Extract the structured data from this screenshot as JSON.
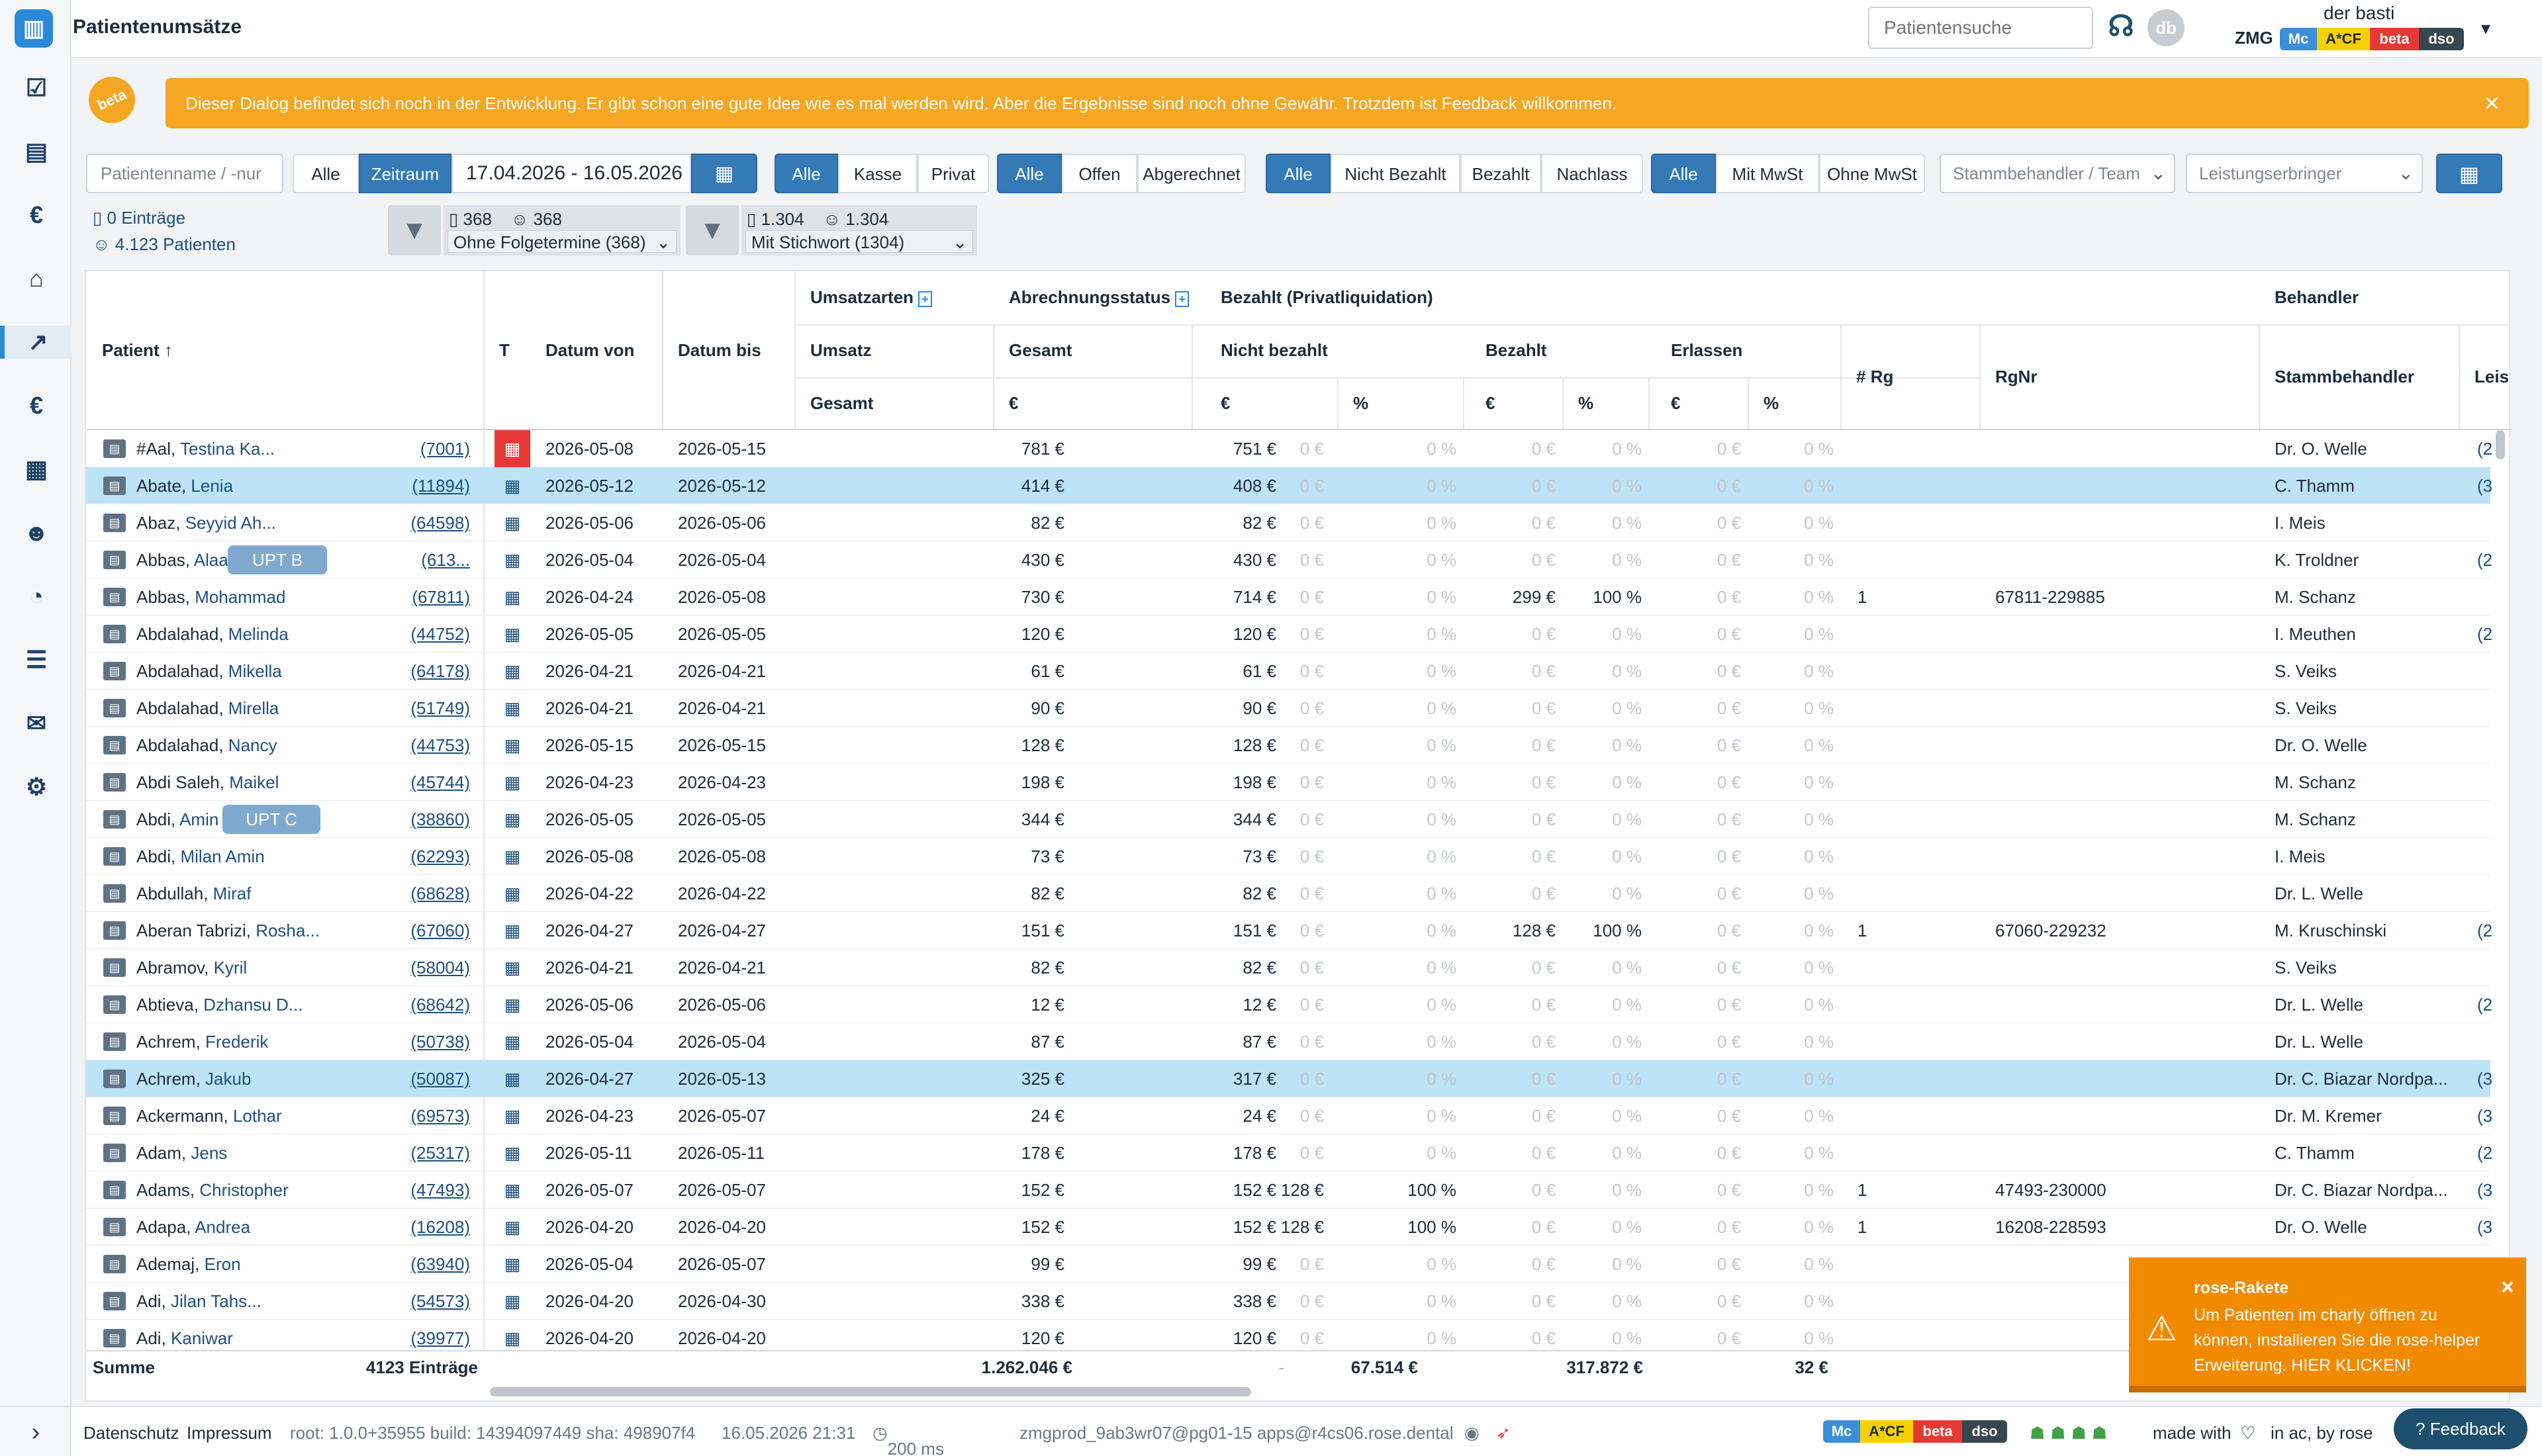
{
  "app": {
    "title": "Patientenumsätze",
    "search_placeholder": "Patientensuche",
    "avatar_initials": "db",
    "user": "der basti",
    "org": "ZMG",
    "badges": [
      "Mc",
      "A*CF",
      "beta",
      "dso"
    ]
  },
  "warning": {
    "badge": "beta",
    "text": "Dieser Dialog befindet sich noch in der Entwicklung. Er gibt schon eine gute Idee wie es mal werden wird. Aber die Ergebnisse sind noch ohne Gewähr. Trotzdem ist Feedback willkommen.",
    "close": "×"
  },
  "filters": {
    "name_placeholder": "Patientenname / -nur",
    "period_all": "Alle",
    "period_range": "Zeitraum",
    "date_range": "17.04.2026 - 16.05.2026",
    "insurance": [
      "Alle",
      "Kasse",
      "Privat"
    ],
    "billing": [
      "Alle",
      "Offen",
      "Abgerechnet"
    ],
    "payment": [
      "Alle",
      "Nicht Bezahlt",
      "Bezahlt",
      "Nachlass"
    ],
    "vat": [
      "Alle",
      "Mit MwSt",
      "Ohne MwSt"
    ],
    "team_placeholder": "Stammbehandler / Team",
    "provider_placeholder": "Leistungserbringer"
  },
  "stats": {
    "entries": "0 Einträge",
    "patients": "4.123 Patienten",
    "f1_a": "368",
    "f1_b": "368",
    "f1_select": "Ohne Folgetermine (368)",
    "f2_a": "1.304",
    "f2_b": "1.304",
    "f2_select": "Mit Stichwort (1304)"
  },
  "headers": {
    "patient": "Patient ↑",
    "t": "T",
    "date_from": "Datum von",
    "date_to": "Datum bis",
    "umsatzarten": "Umsatzarten",
    "abrechnungsstatus": "Abrechnungsstatus",
    "bezahlt_priv": "Bezahlt (Privatliquidation)",
    "behandler": "Behandler",
    "umsatz": "Umsatz",
    "gesamt": "Gesamt",
    "nicht_bezahlt": "Nicht bezahlt",
    "bezahlt": "Bezahlt",
    "erlassen": "Erlassen",
    "rg": "# Rg",
    "rgnr": "RgNr",
    "stammbehandler": "Stammbehandler",
    "leis": "Leis",
    "gesamt2": "Gesamt",
    "euro": "€",
    "pct": "%"
  },
  "rows": [
    {
      "last": "#Aal",
      "first": "Testina Ka...",
      "id": "(7001)",
      "from": "2026-05-08",
      "to": "2026-05-15",
      "umsatz": "781 €",
      "gesamt": "751 €",
      "nb_eur": "0 €",
      "nb_pct": "0 %",
      "b_eur": "0 €",
      "b_pct": "0 %",
      "e_eur": "0 €",
      "e_pct": "0 %",
      "rg": "",
      "rgnr": "",
      "beh": "Dr. O. Welle",
      "extra": "(2"
    },
    {
      "last": "Abate",
      "first": "Lenia",
      "id": "(11894)",
      "from": "2026-05-12",
      "to": "2026-05-12",
      "umsatz": "414 €",
      "gesamt": "408 €",
      "nb_eur": "0 €",
      "nb_pct": "0 %",
      "b_eur": "0 €",
      "b_pct": "0 %",
      "e_eur": "0 €",
      "e_pct": "0 %",
      "rg": "",
      "rgnr": "",
      "beh": "C. Thamm",
      "extra": "(3"
    },
    {
      "last": "Abaz",
      "first": "Seyyid Ah...",
      "id": "(64598)",
      "from": "2026-05-06",
      "to": "2026-05-06",
      "umsatz": "82 €",
      "gesamt": "82 €",
      "nb_eur": "0 €",
      "nb_pct": "0 %",
      "b_eur": "0 €",
      "b_pct": "0 %",
      "e_eur": "0 €",
      "e_pct": "0 %",
      "rg": "",
      "rgnr": "",
      "beh": "I. Meis",
      "extra": ""
    },
    {
      "last": "Abbas",
      "first": "Alaa",
      "id": "(613...",
      "from": "2026-05-04",
      "to": "2026-05-04",
      "umsatz": "430 €",
      "gesamt": "430 €",
      "nb_eur": "0 €",
      "nb_pct": "0 %",
      "b_eur": "0 €",
      "b_pct": "0 %",
      "e_eur": "0 €",
      "e_pct": "0 %",
      "rg": "",
      "rgnr": "",
      "beh": "K. Troldner",
      "extra": "(2"
    },
    {
      "last": "Abbas",
      "first": "Mohammad",
      "id": "(67811)",
      "from": "2026-04-24",
      "to": "2026-05-08",
      "umsatz": "730 €",
      "gesamt": "714 €",
      "nb_eur": "0 €",
      "nb_pct": "0 %",
      "b_eur": "299 €",
      "b_pct": "100 %",
      "e_eur": "0 €",
      "e_pct": "0 %",
      "rg": "1",
      "rgnr": "67811-229885",
      "beh": "M. Schanz",
      "extra": ""
    },
    {
      "last": "Abdalahad",
      "first": "Melinda",
      "id": "(44752)",
      "from": "2026-05-05",
      "to": "2026-05-05",
      "umsatz": "120 €",
      "gesamt": "120 €",
      "nb_eur": "0 €",
      "nb_pct": "0 %",
      "b_eur": "0 €",
      "b_pct": "0 %",
      "e_eur": "0 €",
      "e_pct": "0 %",
      "rg": "",
      "rgnr": "",
      "beh": "I. Meuthen",
      "extra": "(2"
    },
    {
      "last": "Abdalahad",
      "first": "Mikella",
      "id": "(64178)",
      "from": "2026-04-21",
      "to": "2026-04-21",
      "umsatz": "61 €",
      "gesamt": "61 €",
      "nb_eur": "0 €",
      "nb_pct": "0 %",
      "b_eur": "0 €",
      "b_pct": "0 %",
      "e_eur": "0 €",
      "e_pct": "0 %",
      "rg": "",
      "rgnr": "",
      "beh": "S. Veiks",
      "extra": ""
    },
    {
      "last": "Abdalahad",
      "first": "Mirella",
      "id": "(51749)",
      "from": "2026-04-21",
      "to": "2026-04-21",
      "umsatz": "90 €",
      "gesamt": "90 €",
      "nb_eur": "0 €",
      "nb_pct": "0 %",
      "b_eur": "0 €",
      "b_pct": "0 %",
      "e_eur": "0 €",
      "e_pct": "0 %",
      "rg": "",
      "rgnr": "",
      "beh": "S. Veiks",
      "extra": ""
    },
    {
      "last": "Abdalahad",
      "first": "Nancy",
      "id": "(44753)",
      "from": "2026-05-15",
      "to": "2026-05-15",
      "umsatz": "128 €",
      "gesamt": "128 €",
      "nb_eur": "0 €",
      "nb_pct": "0 %",
      "b_eur": "0 €",
      "b_pct": "0 %",
      "e_eur": "0 €",
      "e_pct": "0 %",
      "rg": "",
      "rgnr": "",
      "beh": "Dr. O. Welle",
      "extra": ""
    },
    {
      "last": "Abdi Saleh",
      "first": "Maikel",
      "id": "(45744)",
      "from": "2026-04-23",
      "to": "2026-04-23",
      "umsatz": "198 €",
      "gesamt": "198 €",
      "nb_eur": "0 €",
      "nb_pct": "0 %",
      "b_eur": "0 €",
      "b_pct": "0 %",
      "e_eur": "0 €",
      "e_pct": "0 %",
      "rg": "",
      "rgnr": "",
      "beh": "M. Schanz",
      "extra": ""
    },
    {
      "last": "Abdi",
      "first": "Amin",
      "id": "(38860)",
      "from": "2026-05-05",
      "to": "2026-05-05",
      "umsatz": "344 €",
      "gesamt": "344 €",
      "nb_eur": "0 €",
      "nb_pct": "0 %",
      "b_eur": "0 €",
      "b_pct": "0 %",
      "e_eur": "0 €",
      "e_pct": "0 %",
      "rg": "",
      "rgnr": "",
      "beh": "M. Schanz",
      "extra": ""
    },
    {
      "last": "Abdi",
      "first": "Milan Amin",
      "id": "(62293)",
      "from": "2026-05-08",
      "to": "2026-05-08",
      "umsatz": "73 €",
      "gesamt": "73 €",
      "nb_eur": "0 €",
      "nb_pct": "0 %",
      "b_eur": "0 €",
      "b_pct": "0 %",
      "e_eur": "0 €",
      "e_pct": "0 %",
      "rg": "",
      "rgnr": "",
      "beh": "I. Meis",
      "extra": ""
    },
    {
      "last": "Abdullah",
      "first": "Miraf",
      "id": "(68628)",
      "from": "2026-04-22",
      "to": "2026-04-22",
      "umsatz": "82 €",
      "gesamt": "82 €",
      "nb_eur": "0 €",
      "nb_pct": "0 %",
      "b_eur": "0 €",
      "b_pct": "0 %",
      "e_eur": "0 €",
      "e_pct": "0 %",
      "rg": "",
      "rgnr": "",
      "beh": "Dr. L. Welle",
      "extra": ""
    },
    {
      "last": "Aberan Tabrizi",
      "first": "Rosha...",
      "id": "(67060)",
      "from": "2026-04-27",
      "to": "2026-04-27",
      "umsatz": "151 €",
      "gesamt": "151 €",
      "nb_eur": "0 €",
      "nb_pct": "0 %",
      "b_eur": "128 €",
      "b_pct": "100 %",
      "e_eur": "0 €",
      "e_pct": "0 %",
      "rg": "1",
      "rgnr": "67060-229232",
      "beh": "M. Kruschinski",
      "extra": "(2"
    },
    {
      "last": "Abramov",
      "first": "Kyril",
      "id": "(58004)",
      "from": "2026-04-21",
      "to": "2026-04-21",
      "umsatz": "82 €",
      "gesamt": "82 €",
      "nb_eur": "0 €",
      "nb_pct": "0 %",
      "b_eur": "0 €",
      "b_pct": "0 %",
      "e_eur": "0 €",
      "e_pct": "0 %",
      "rg": "",
      "rgnr": "",
      "beh": "S. Veiks",
      "extra": ""
    },
    {
      "last": "Abtieva",
      "first": "Dzhansu D...",
      "id": "(68642)",
      "from": "2026-05-06",
      "to": "2026-05-06",
      "umsatz": "12 €",
      "gesamt": "12 €",
      "nb_eur": "0 €",
      "nb_pct": "0 %",
      "b_eur": "0 €",
      "b_pct": "0 %",
      "e_eur": "0 €",
      "e_pct": "0 %",
      "rg": "",
      "rgnr": "",
      "beh": "Dr. L. Welle",
      "extra": "(2"
    },
    {
      "last": "Achrem",
      "first": "Frederik",
      "id": "(50738)",
      "from": "2026-05-04",
      "to": "2026-05-04",
      "umsatz": "87 €",
      "gesamt": "87 €",
      "nb_eur": "0 €",
      "nb_pct": "0 %",
      "b_eur": "0 €",
      "b_pct": "0 %",
      "e_eur": "0 €",
      "e_pct": "0 %",
      "rg": "",
      "rgnr": "",
      "beh": "Dr. L. Welle",
      "extra": ""
    },
    {
      "last": "Achrem",
      "first": "Jakub",
      "id": "(50087)",
      "from": "2026-04-27",
      "to": "2026-05-13",
      "umsatz": "325 €",
      "gesamt": "317 €",
      "nb_eur": "0 €",
      "nb_pct": "0 %",
      "b_eur": "0 €",
      "b_pct": "0 %",
      "e_eur": "0 €",
      "e_pct": "0 %",
      "rg": "",
      "rgnr": "",
      "beh": "Dr. C. Biazar Nordpa...",
      "extra": "(3"
    },
    {
      "last": "Ackermann",
      "first": "Lothar",
      "id": "(69573)",
      "from": "2026-04-23",
      "to": "2026-05-07",
      "umsatz": "24 €",
      "gesamt": "24 €",
      "nb_eur": "0 €",
      "nb_pct": "0 %",
      "b_eur": "0 €",
      "b_pct": "0 %",
      "e_eur": "0 €",
      "e_pct": "0 %",
      "rg": "",
      "rgnr": "",
      "beh": "Dr. M. Kremer",
      "extra": "(3"
    },
    {
      "last": "Adam",
      "first": "Jens",
      "id": "(25317)",
      "from": "2026-05-11",
      "to": "2026-05-11",
      "umsatz": "178 €",
      "gesamt": "178 €",
      "nb_eur": "0 €",
      "nb_pct": "0 %",
      "b_eur": "0 €",
      "b_pct": "0 %",
      "e_eur": "0 €",
      "e_pct": "0 %",
      "rg": "",
      "rgnr": "",
      "beh": "C. Thamm",
      "extra": "(2"
    },
    {
      "last": "Adams",
      "first": "Christopher",
      "id": "(47493)",
      "from": "2026-05-07",
      "to": "2026-05-07",
      "umsatz": "152 €",
      "gesamt": "152 €",
      "nb_eur": "128 €",
      "nb_pct": "100 %",
      "b_eur": "0 €",
      "b_pct": "0 %",
      "e_eur": "0 €",
      "e_pct": "0 %",
      "rg": "1",
      "rgnr": "47493-230000",
      "beh": "Dr. C. Biazar Nordpa...",
      "extra": "(3"
    },
    {
      "last": "Adapa",
      "first": "Andrea",
      "id": "(16208)",
      "from": "2026-04-20",
      "to": "2026-04-20",
      "umsatz": "152 €",
      "gesamt": "152 €",
      "nb_eur": "128 €",
      "nb_pct": "100 %",
      "b_eur": "0 €",
      "b_pct": "0 %",
      "e_eur": "0 €",
      "e_pct": "0 %",
      "rg": "1",
      "rgnr": "16208-228593",
      "beh": "Dr. O. Welle",
      "extra": "(3"
    },
    {
      "last": "Ademaj",
      "first": "Eron",
      "id": "(63940)",
      "from": "2026-05-04",
      "to": "2026-05-07",
      "umsatz": "99 €",
      "gesamt": "99 €",
      "nb_eur": "0 €",
      "nb_pct": "0 %",
      "b_eur": "0 €",
      "b_pct": "0 %",
      "e_eur": "0 €",
      "e_pct": "0 %",
      "rg": "",
      "rgnr": "",
      "beh": "",
      "extra": ""
    },
    {
      "last": "Adi",
      "first": "Jilan Tahs...",
      "id": "(54573)",
      "from": "2026-04-20",
      "to": "2026-04-30",
      "umsatz": "338 €",
      "gesamt": "338 €",
      "nb_eur": "0 €",
      "nb_pct": "0 %",
      "b_eur": "0 €",
      "b_pct": "0 %",
      "e_eur": "0 €",
      "e_pct": "0 %",
      "rg": "",
      "rgnr": "",
      "beh": "",
      "extra": ""
    },
    {
      "last": "Adi",
      "first": "Kaniwar",
      "id": "(39977)",
      "from": "2026-04-20",
      "to": "2026-04-20",
      "umsatz": "120 €",
      "gesamt": "120 €",
      "nb_eur": "0 €",
      "nb_pct": "0 %",
      "b_eur": "0 €",
      "b_pct": "0 %",
      "e_eur": "0 €",
      "e_pct": "0 %",
      "rg": "",
      "rgnr": "",
      "beh": "",
      "extra": ""
    }
  ],
  "upt": {
    "b": "UPT B",
    "c": "UPT C"
  },
  "summary": {
    "label": "Summe",
    "count": "4123 Einträge",
    "umsatz": "1.262.046 €",
    "gesamt": "-",
    "nicht_bezahlt": "67.514 €",
    "bezahlt": "317.872 €",
    "erlassen": "32 €"
  },
  "footer": {
    "datenschutz": "Datenschutz",
    "impressum": "Impressum",
    "build": "root: 1.0.0+35955  build: 14394097449  sha: 498907f4",
    "datetime": "16.05.2026 21:31",
    "latency": "200 ms",
    "server": "zmgprod_9ab3wr07@pg01-15  apps@r4cs06.rose.dental",
    "made_with": "made with",
    "in_ac": "in ac, by rose",
    "feedback": "Feedback"
  },
  "toast": {
    "title": "rose-Rakete",
    "body": "Um Patienten im charly öffnen zu können, installieren Sie die rose-helper Erweiterung. HIER KLICKEN!",
    "close": "×"
  },
  "colors": {
    "primary": "#337ab7",
    "warning": "#f5a623",
    "selected_row": "#bce3f6",
    "toast": "#f28a00",
    "badge_mc": "#3b8fd9",
    "badge_acf": "#f6d000",
    "badge_beta": "#e53935",
    "badge_dso": "#37474f"
  }
}
